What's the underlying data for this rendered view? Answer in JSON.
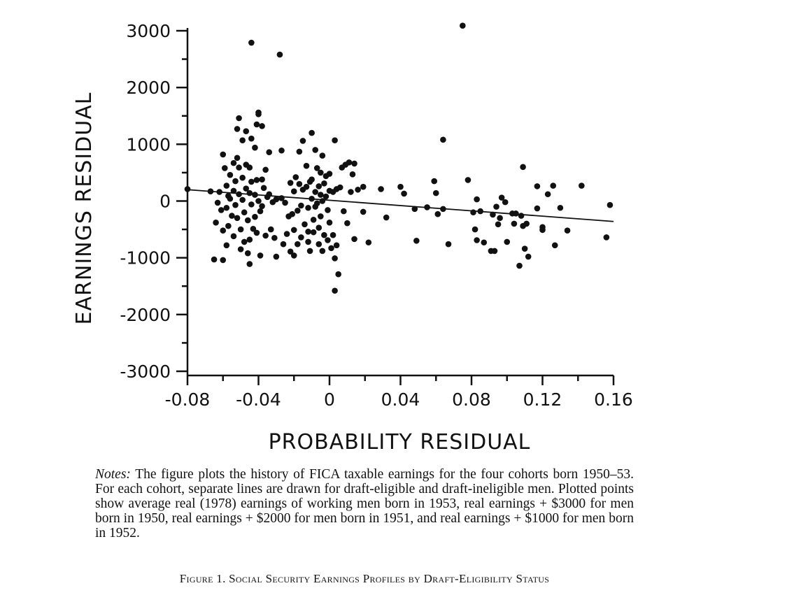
{
  "chart_data": {
    "type": "scatter",
    "xlabel": "PROBABILITY RESIDUAL",
    "ylabel": "EARNINGS RESIDUAL",
    "xlim": [
      -0.08,
      0.16
    ],
    "ylim": [
      -3000,
      3000
    ],
    "xticks": [
      -0.08,
      -0.04,
      0,
      0.04,
      0.08,
      0.12,
      0.16
    ],
    "xtick_labels": [
      "-0.08",
      "-0.04",
      "0",
      "0.04",
      "0.08",
      "0.12",
      "0.16"
    ],
    "yticks": [
      3000,
      2000,
      1000,
      0,
      -1000,
      -2000,
      -3000
    ],
    "ytick_labels": [
      "3000",
      "2000",
      "1000",
      "0",
      "-1000",
      "-2000",
      "-3000"
    ],
    "grid": false,
    "fit_line": {
      "x": [
        -0.08,
        0.16
      ],
      "y": [
        200,
        -360
      ]
    },
    "points": [
      [
        -0.08,
        210
      ],
      [
        -0.067,
        170
      ],
      [
        -0.065,
        -1030
      ],
      [
        -0.064,
        -380
      ],
      [
        -0.063,
        -30
      ],
      [
        -0.062,
        160
      ],
      [
        -0.061,
        -160
      ],
      [
        -0.06,
        820
      ],
      [
        -0.06,
        -520
      ],
      [
        -0.06,
        -1040
      ],
      [
        -0.059,
        580
      ],
      [
        -0.058,
        270
      ],
      [
        -0.058,
        -120
      ],
      [
        -0.058,
        -780
      ],
      [
        -0.057,
        90
      ],
      [
        -0.057,
        -440
      ],
      [
        -0.056,
        460
      ],
      [
        -0.056,
        40
      ],
      [
        -0.055,
        -260
      ],
      [
        -0.054,
        670
      ],
      [
        -0.054,
        180
      ],
      [
        -0.054,
        -620
      ],
      [
        -0.053,
        350
      ],
      [
        -0.053,
        -70
      ],
      [
        -0.052,
        1270
      ],
      [
        -0.052,
        760
      ],
      [
        -0.052,
        -300
      ],
      [
        -0.051,
        1460
      ],
      [
        -0.051,
        590
      ],
      [
        -0.051,
        120
      ],
      [
        -0.05,
        -500
      ],
      [
        -0.05,
        -850
      ],
      [
        -0.049,
        1070
      ],
      [
        -0.049,
        410
      ],
      [
        -0.049,
        20
      ],
      [
        -0.048,
        -200
      ],
      [
        -0.048,
        -720
      ],
      [
        -0.047,
        1230
      ],
      [
        -0.047,
        640
      ],
      [
        -0.047,
        220
      ],
      [
        -0.046,
        -340
      ],
      [
        -0.046,
        -920
      ],
      [
        -0.045,
        590
      ],
      [
        -0.045,
        140
      ],
      [
        -0.045,
        -680
      ],
      [
        -0.045,
        -1110
      ],
      [
        -0.044,
        2790
      ],
      [
        -0.044,
        1100
      ],
      [
        -0.044,
        340
      ],
      [
        -0.044,
        -60
      ],
      [
        -0.043,
        -490
      ],
      [
        -0.042,
        940
      ],
      [
        -0.042,
        110
      ],
      [
        -0.042,
        -280
      ],
      [
        -0.041,
        1350
      ],
      [
        -0.041,
        370
      ],
      [
        -0.041,
        -560
      ],
      [
        -0.04,
        1560
      ],
      [
        -0.04,
        1530
      ],
      [
        -0.04,
        0
      ],
      [
        -0.039,
        -180
      ],
      [
        -0.039,
        -960
      ],
      [
        -0.038,
        1320
      ],
      [
        -0.038,
        380
      ],
      [
        -0.038,
        -90
      ],
      [
        -0.037,
        230
      ],
      [
        -0.036,
        550
      ],
      [
        -0.036,
        -610
      ],
      [
        -0.035,
        70
      ],
      [
        -0.034,
        860
      ],
      [
        -0.034,
        120
      ],
      [
        -0.033,
        -500
      ],
      [
        -0.032,
        -20
      ],
      [
        -0.031,
        -650
      ],
      [
        -0.03,
        -980
      ],
      [
        -0.03,
        30
      ],
      [
        -0.028,
        2580
      ],
      [
        -0.027,
        890
      ],
      [
        -0.027,
        50
      ],
      [
        -0.026,
        -760
      ],
      [
        -0.025,
        -30
      ],
      [
        -0.024,
        -580
      ],
      [
        -0.023,
        -270
      ],
      [
        -0.022,
        320
      ],
      [
        -0.022,
        -890
      ],
      [
        -0.021,
        -230
      ],
      [
        -0.02,
        170
      ],
      [
        -0.02,
        -510
      ],
      [
        -0.02,
        -960
      ],
      [
        -0.019,
        420
      ],
      [
        -0.018,
        -170
      ],
      [
        -0.018,
        -760
      ],
      [
        -0.017,
        870
      ],
      [
        -0.017,
        300
      ],
      [
        -0.016,
        -80
      ],
      [
        -0.016,
        -640
      ],
      [
        -0.015,
        1060
      ],
      [
        -0.015,
        200
      ],
      [
        -0.014,
        -410
      ],
      [
        -0.013,
        620
      ],
      [
        -0.013,
        250
      ],
      [
        -0.012,
        -120
      ],
      [
        -0.012,
        -540
      ],
      [
        -0.012,
        -720
      ],
      [
        -0.011,
        340
      ],
      [
        -0.011,
        -880
      ],
      [
        -0.01,
        1200
      ],
      [
        -0.01,
        40
      ],
      [
        -0.01,
        380
      ],
      [
        -0.009,
        -330
      ],
      [
        -0.009,
        -550
      ],
      [
        -0.008,
        900
      ],
      [
        -0.008,
        160
      ],
      [
        -0.008,
        -100
      ],
      [
        -0.007,
        580
      ],
      [
        -0.007,
        -40
      ],
      [
        -0.006,
        260
      ],
      [
        -0.006,
        -760
      ],
      [
        -0.006,
        -470
      ],
      [
        -0.005,
        500
      ],
      [
        -0.005,
        110
      ],
      [
        -0.005,
        -270
      ],
      [
        -0.004,
        800
      ],
      [
        -0.004,
        0
      ],
      [
        -0.004,
        -880
      ],
      [
        -0.003,
        310
      ],
      [
        -0.003,
        -600
      ],
      [
        -0.002,
        440
      ],
      [
        -0.002,
        80
      ],
      [
        -0.001,
        -160
      ],
      [
        -0.001,
        -690
      ],
      [
        0.0,
        480
      ],
      [
        0.0,
        180
      ],
      [
        0.0,
        -380
      ],
      [
        0.001,
        -830
      ],
      [
        0.002,
        160
      ],
      [
        0.002,
        -600
      ],
      [
        0.003,
        1070
      ],
      [
        0.003,
        -1010
      ],
      [
        0.003,
        -1580
      ],
      [
        0.004,
        210
      ],
      [
        0.004,
        -780
      ],
      [
        0.005,
        -1290
      ],
      [
        0.006,
        240
      ],
      [
        0.007,
        590
      ],
      [
        0.008,
        -180
      ],
      [
        0.009,
        640
      ],
      [
        0.01,
        -390
      ],
      [
        0.011,
        680
      ],
      [
        0.012,
        160
      ],
      [
        0.013,
        470
      ],
      [
        0.014,
        660
      ],
      [
        0.014,
        -670
      ],
      [
        0.016,
        200
      ],
      [
        0.019,
        250
      ],
      [
        0.019,
        -190
      ],
      [
        0.022,
        -730
      ],
      [
        0.029,
        210
      ],
      [
        0.032,
        -290
      ],
      [
        0.04,
        250
      ],
      [
        0.042,
        130
      ],
      [
        0.048,
        -140
      ],
      [
        0.049,
        -700
      ],
      [
        0.055,
        -110
      ],
      [
        0.059,
        350
      ],
      [
        0.06,
        140
      ],
      [
        0.061,
        -230
      ],
      [
        0.064,
        1080
      ],
      [
        0.064,
        -140
      ],
      [
        0.067,
        -760
      ],
      [
        0.075,
        3090
      ],
      [
        0.078,
        370
      ],
      [
        0.081,
        -200
      ],
      [
        0.082,
        -500
      ],
      [
        0.083,
        -690
      ],
      [
        0.083,
        30
      ],
      [
        0.085,
        -180
      ],
      [
        0.087,
        -730
      ],
      [
        0.091,
        -880
      ],
      [
        0.092,
        -240
      ],
      [
        0.093,
        -880
      ],
      [
        0.094,
        -100
      ],
      [
        0.095,
        -410
      ],
      [
        0.096,
        -300
      ],
      [
        0.097,
        60
      ],
      [
        0.099,
        -20
      ],
      [
        0.1,
        -720
      ],
      [
        0.103,
        -220
      ],
      [
        0.104,
        -400
      ],
      [
        0.105,
        -220
      ],
      [
        0.107,
        -1140
      ],
      [
        0.108,
        -260
      ],
      [
        0.109,
        600
      ],
      [
        0.109,
        -440
      ],
      [
        0.11,
        -840
      ],
      [
        0.111,
        -400
      ],
      [
        0.112,
        -980
      ],
      [
        0.117,
        260
      ],
      [
        0.117,
        -130
      ],
      [
        0.12,
        -460
      ],
      [
        0.12,
        -510
      ],
      [
        0.123,
        120
      ],
      [
        0.126,
        270
      ],
      [
        0.127,
        -780
      ],
      [
        0.13,
        -120
      ],
      [
        0.134,
        -520
      ],
      [
        0.142,
        270
      ],
      [
        0.156,
        -640
      ],
      [
        0.158,
        -70
      ]
    ]
  },
  "notes": {
    "lead": "Notes:",
    "text": "The figure plots the history of FICA taxable earnings for the four cohorts born 1950–53. For each cohort, separate lines are drawn for draft-eligible and draft-ineligible men. Plotted points show average real (1978) earnings of working men born in 1953, real earnings + $3000 for men born in 1950, real earnings + $2000 for men born in 1951, and real earnings + $1000 for men born in 1952."
  },
  "caption": {
    "text": "Figure 1. Social Security Earnings Profiles by Draft-Eligibility Status"
  }
}
